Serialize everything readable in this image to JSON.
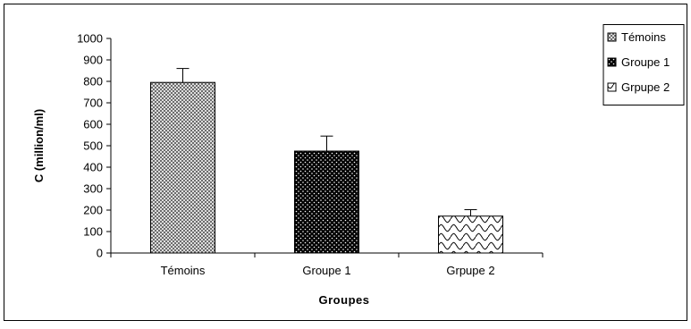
{
  "chart_data": {
    "type": "bar",
    "categories": [
      "Témoins",
      "Groupe 1",
      "Grpupe 2"
    ],
    "values": [
      795,
      475,
      172
    ],
    "error_bars": [
      65,
      70,
      30
    ],
    "title": "",
    "xlabel": "Groupes",
    "ylabel": "C (million/ml)",
    "ylim": [
      0,
      1000
    ],
    "yticks": [
      0,
      100,
      200,
      300,
      400,
      500,
      600,
      700,
      800,
      900,
      1000
    ],
    "legend": {
      "placement": "top-right",
      "entries": [
        "Témoins",
        "Groupe 1",
        "Grpupe 2"
      ]
    },
    "grid": false,
    "bar_patterns": [
      "crosshatch",
      "dotted-black",
      "wave-white"
    ]
  }
}
